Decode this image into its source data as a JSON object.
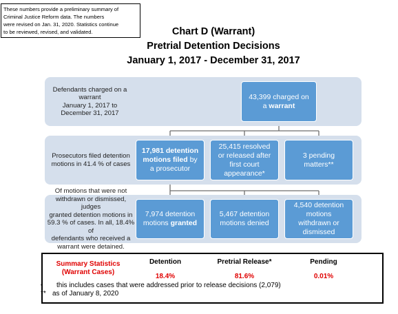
{
  "note": [
    "These numbers provide a preliminary summary of",
    "Criminal Justice Reform data.  The numbers",
    "were revised on Jan. 31, 2020. Statistics continue",
    "to be reviewed, revised, and validated."
  ],
  "title": [
    "Chart D (Warrant)",
    "Pretrial Detention Decisions",
    "January 1, 2017 - December 31, 2017"
  ],
  "rows": [
    {
      "label": [
        "Defendants charged on a",
        "warrant",
        "January 1, 2017 to",
        "December 31, 2017"
      ],
      "boxes": [
        {
          "parts": [
            {
              "text": "43,399 charged on a",
              "bold": false
            },
            {
              "text": "warrant",
              "bold": true
            }
          ]
        }
      ]
    },
    {
      "label": [
        "Prosecutors filed detention",
        "motions in 41.4 % of cases"
      ],
      "boxes": [
        {
          "parts": [
            {
              "text": "17,981 detention motions filed",
              "bold": true
            },
            {
              "text": "by a prosecutor",
              "bold": false
            }
          ]
        },
        {
          "parts": [
            {
              "text": "25,415 resolved or released after first court appearance*",
              "bold": false
            }
          ]
        },
        {
          "parts": [
            {
              "text": "3 pending matters**",
              "bold": false
            }
          ]
        }
      ]
    },
    {
      "label": [
        "Of motions that were not",
        "withdrawn or dismissed, judges",
        "granted detention motions in",
        "59.3 % of cases.  In all, 18.4% of",
        "defendants who received a",
        "warrant were detained."
      ],
      "boxes": [
        {
          "parts": [
            {
              "text": "7,974 detention motions",
              "bold": false
            },
            {
              "text": "granted",
              "bold": true
            }
          ]
        },
        {
          "parts": [
            {
              "text": "5,467 detention motions denied",
              "bold": false
            }
          ]
        },
        {
          "parts": [
            {
              "text": "4,540 detention motions withdrawn or dismissed",
              "bold": false
            }
          ]
        }
      ]
    }
  ],
  "summary": {
    "title": [
      "Summary Statistics",
      "(Warrant Cases)"
    ],
    "columns": [
      {
        "header": "Detention",
        "value": "18.4%"
      },
      {
        "header": "Pretrial Release*",
        "value": "81.6%"
      },
      {
        "header": "Pending",
        "value": "0.01%"
      }
    ],
    "footnotes": [
      {
        "marker": "•",
        "text": "this includes cases that were addressed prior to release decisions (2,079)"
      },
      {
        "marker": "**",
        "text": "as of January 8, 2020"
      }
    ]
  }
}
